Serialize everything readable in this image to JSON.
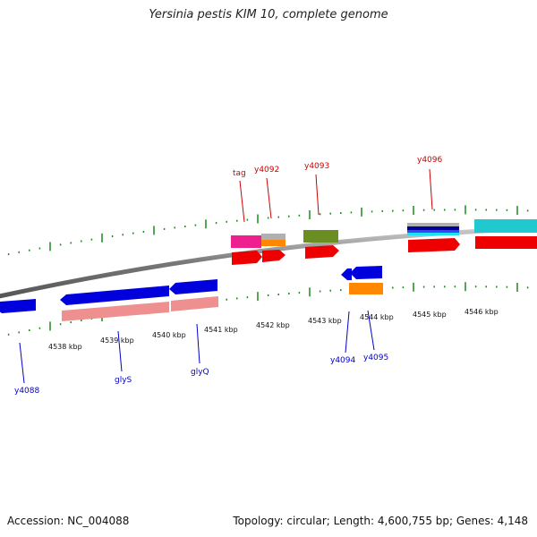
{
  "title": "Yersinia pestis KIM 10, complete genome",
  "footer": {
    "accession": "Accession: NC_004088",
    "summary": "Topology: circular; Length: 4,600,755 bp; Genes: 4,148"
  },
  "colors": {
    "backbone": "#888888",
    "tick": "#1a8a1a",
    "label_forward": "#cc0000",
    "label_reverse": "#0000cc"
  },
  "scale_labels": [
    "4538 kbp",
    "4539 kbp",
    "4540 kbp",
    "4541 kbp",
    "4542 kbp",
    "4543 kbp",
    "4544 kbp",
    "4545 kbp",
    "4546 kbp"
  ],
  "genes_forward": [
    {
      "name": "tag",
      "color": "#cc0000"
    },
    {
      "name": "y4092",
      "color": "#cc0000"
    },
    {
      "name": "y4093",
      "color": "#cc0000"
    },
    {
      "name": "y4096",
      "color": "#cc0000"
    }
  ],
  "genes_reverse": [
    {
      "name": "y4088",
      "color": "#0000cc"
    },
    {
      "name": "glyS",
      "color": "#0000cc"
    },
    {
      "name": "glyQ",
      "color": "#0000cc"
    },
    {
      "name": "y4094",
      "color": "#0000cc"
    },
    {
      "name": "y4095",
      "color": "#0000cc"
    }
  ],
  "feature_colors": {
    "cds": "#ee0000",
    "gene_rev": "#0000dd",
    "cog_pink": "#ee9090",
    "cog_magenta": "#ee2090",
    "cog_grey": "#b0b0b0",
    "cog_orange": "#ff8800",
    "cog_olive": "#6b8e23",
    "cog_cyan": "#20c8d0",
    "cog_navy": "#000099"
  }
}
